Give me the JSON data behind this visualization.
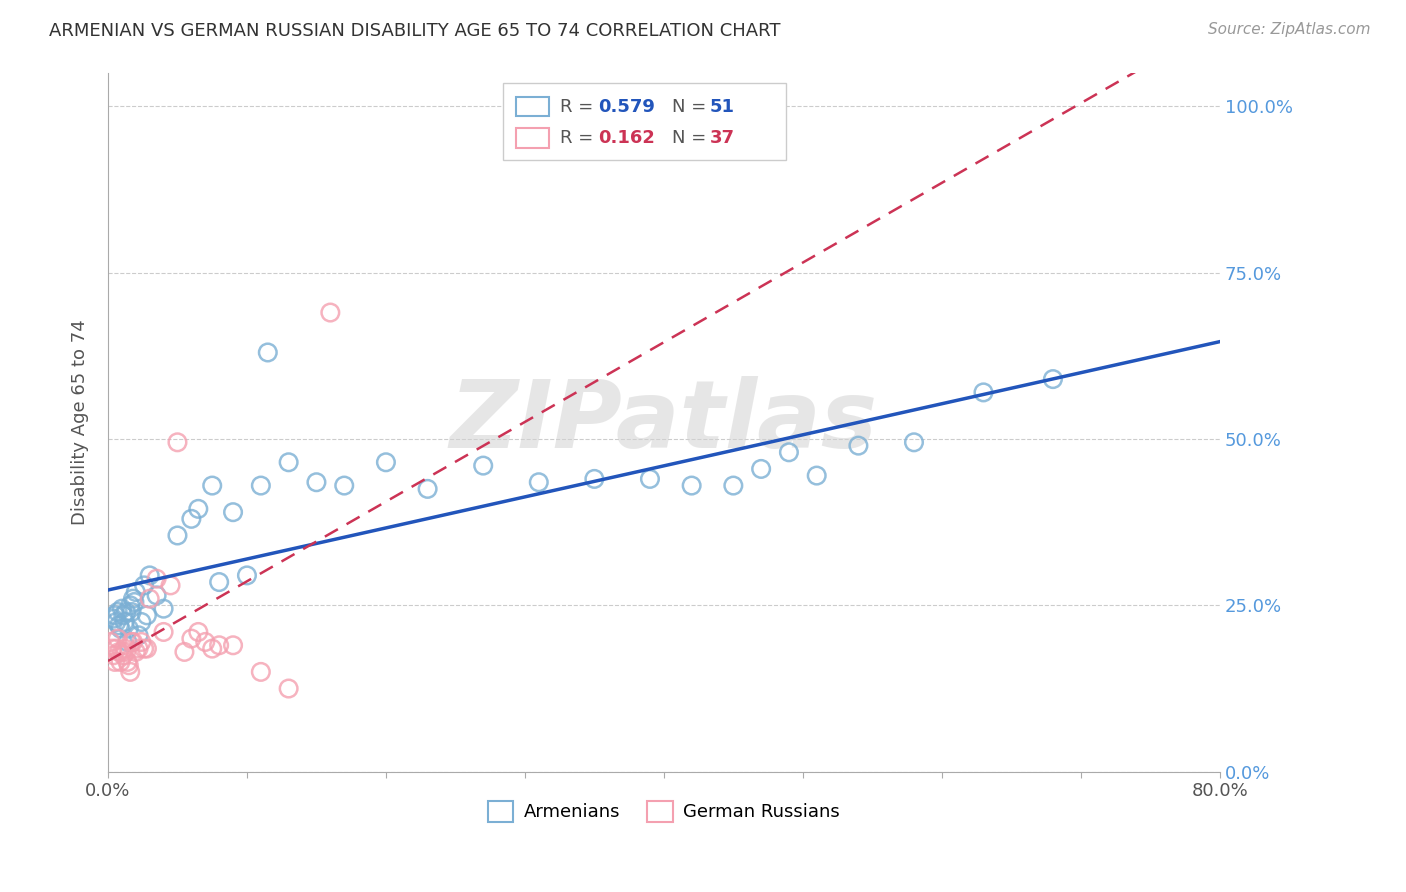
{
  "title": "ARMENIAN VS GERMAN RUSSIAN DISABILITY AGE 65 TO 74 CORRELATION CHART",
  "source": "Source: ZipAtlas.com",
  "ylabel": "Disability Age 65 to 74",
  "xlim": [
    0.0,
    0.8
  ],
  "ylim": [
    0.0,
    1.05
  ],
  "yticks": [
    0.0,
    0.25,
    0.5,
    0.75,
    1.0
  ],
  "ytick_labels": [
    "0.0%",
    "25.0%",
    "50.0%",
    "75.0%",
    "100.0%"
  ],
  "xticks": [
    0.0,
    0.1,
    0.2,
    0.3,
    0.4,
    0.5,
    0.6,
    0.7,
    0.8
  ],
  "xtick_labels": [
    "0.0%",
    "",
    "",
    "",
    "",
    "",
    "",
    "",
    "80.0%"
  ],
  "armenians_R": 0.579,
  "armenians_N": 51,
  "german_russians_R": 0.162,
  "german_russians_N": 37,
  "armenians_color": "#7BAFD4",
  "german_russians_color": "#F4A0B0",
  "armenians_line_color": "#2255BB",
  "german_russians_line_color": "#CC3355",
  "watermark": "ZIPatlas",
  "armenians_x": [
    0.004,
    0.005,
    0.006,
    0.007,
    0.008,
    0.009,
    0.01,
    0.011,
    0.012,
    0.013,
    0.014,
    0.015,
    0.016,
    0.017,
    0.018,
    0.019,
    0.02,
    0.022,
    0.024,
    0.026,
    0.028,
    0.03,
    0.035,
    0.04,
    0.05,
    0.06,
    0.065,
    0.075,
    0.08,
    0.09,
    0.1,
    0.11,
    0.115,
    0.13,
    0.15,
    0.17,
    0.2,
    0.23,
    0.27,
    0.31,
    0.35,
    0.39,
    0.42,
    0.45,
    0.47,
    0.49,
    0.51,
    0.54,
    0.58,
    0.63,
    0.68
  ],
  "armenians_y": [
    0.23,
    0.235,
    0.225,
    0.24,
    0.22,
    0.215,
    0.245,
    0.235,
    0.225,
    0.24,
    0.195,
    0.215,
    0.25,
    0.24,
    0.26,
    0.255,
    0.27,
    0.205,
    0.225,
    0.28,
    0.235,
    0.295,
    0.265,
    0.245,
    0.355,
    0.38,
    0.395,
    0.43,
    0.285,
    0.39,
    0.295,
    0.43,
    0.63,
    0.465,
    0.435,
    0.43,
    0.465,
    0.425,
    0.46,
    0.435,
    0.44,
    0.44,
    0.43,
    0.43,
    0.455,
    0.48,
    0.445,
    0.49,
    0.495,
    0.57,
    0.59
  ],
  "german_russians_x": [
    0.002,
    0.003,
    0.004,
    0.005,
    0.006,
    0.007,
    0.008,
    0.009,
    0.01,
    0.011,
    0.012,
    0.013,
    0.014,
    0.015,
    0.016,
    0.017,
    0.018,
    0.02,
    0.022,
    0.024,
    0.026,
    0.028,
    0.03,
    0.035,
    0.04,
    0.045,
    0.05,
    0.055,
    0.06,
    0.065,
    0.07,
    0.075,
    0.08,
    0.09,
    0.11,
    0.13,
    0.16
  ],
  "german_russians_y": [
    0.195,
    0.185,
    0.175,
    0.165,
    0.185,
    0.2,
    0.18,
    0.165,
    0.18,
    0.175,
    0.185,
    0.18,
    0.165,
    0.16,
    0.15,
    0.195,
    0.195,
    0.18,
    0.185,
    0.195,
    0.185,
    0.185,
    0.26,
    0.29,
    0.21,
    0.28,
    0.495,
    0.18,
    0.2,
    0.21,
    0.195,
    0.185,
    0.19,
    0.19,
    0.15,
    0.125,
    0.69
  ]
}
